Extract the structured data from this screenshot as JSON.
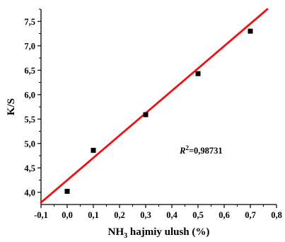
{
  "chart_data": {
    "type": "scatter",
    "title": "",
    "xlabel_main": "NH",
    "xlabel_sub": "3",
    "xlabel_rest": " hajmiy ulush (%)",
    "ylabel": "K/S",
    "xlim": [
      -0.1,
      0.8
    ],
    "ylim": [
      3.75,
      7.75
    ],
    "grid": false,
    "x_ticks": [
      -0.1,
      0.0,
      0.1,
      0.2,
      0.3,
      0.4,
      0.5,
      0.6,
      0.7,
      0.8
    ],
    "x_tick_labels": [
      "-0,1",
      "0,0",
      "0,1",
      "0,2",
      "0,3",
      "0,4",
      "0,5",
      "0,6",
      "0,7",
      "0,8"
    ],
    "y_ticks": [
      4.0,
      4.5,
      5.0,
      5.5,
      6.0,
      6.5,
      7.0,
      7.5
    ],
    "y_tick_labels": [
      "4,0",
      "4,5",
      "5,0",
      "5,5",
      "6,0",
      "6,5",
      "7,0",
      "7,5"
    ],
    "series": [
      {
        "marker": "square",
        "color": "#000000",
        "points": [
          {
            "x": 0.0,
            "y": 4.02
          },
          {
            "x": 0.1,
            "y": 4.86
          },
          {
            "x": 0.3,
            "y": 5.59
          },
          {
            "x": 0.5,
            "y": 6.43
          },
          {
            "x": 0.7,
            "y": 7.3
          }
        ]
      }
    ],
    "fit_line": {
      "color": "#ee1111",
      "x_start": -0.1,
      "y_start": 3.79,
      "x_end": 0.765,
      "y_end": 7.75
    },
    "annotation": {
      "r_letter": "R",
      "r_sup": "2",
      "r_value": "=0,98731",
      "x": 0.43,
      "y": 4.85
    }
  }
}
